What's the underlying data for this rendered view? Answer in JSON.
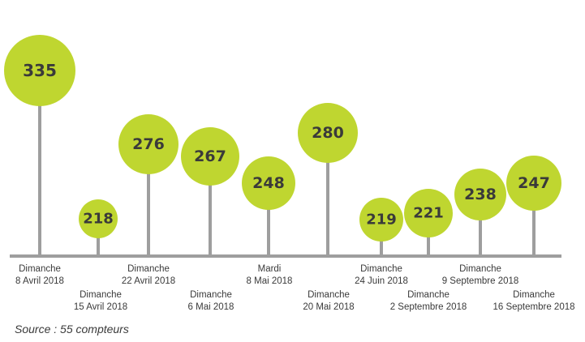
{
  "chart_data": {
    "type": "lollipop",
    "colors": {
      "bubble": "#bfd630",
      "stem": "#9e9e9e",
      "baseline": "#9e9e9e",
      "text": "#3a3a3a"
    },
    "points": [
      {
        "date_line1": "Dimanche",
        "date_line2": "8 Avril 2018",
        "value": 335
      },
      {
        "date_line1": "Dimanche",
        "date_line2": "15 Avril 2018",
        "value": 218
      },
      {
        "date_line1": "Dimanche",
        "date_line2": "22 Avril 2018",
        "value": 276
      },
      {
        "date_line1": "Dimanche",
        "date_line2": "6 Mai 2018",
        "value": 267
      },
      {
        "date_line1": "Mardi",
        "date_line2": "8 Mai 2018",
        "value": 248
      },
      {
        "date_line1": "Dimanche",
        "date_line2": "20 Mai 2018",
        "value": 280
      },
      {
        "date_line1": "Dimanche",
        "date_line2": "24 Juin 2018",
        "value": 219
      },
      {
        "date_line1": "Dimanche",
        "date_line2": "2 Septembre 2018",
        "value": 221
      },
      {
        "date_line1": "Dimanche",
        "date_line2": "9 Septembre 2018",
        "value": 238
      },
      {
        "date_line1": "Dimanche",
        "date_line2": "16 Septembre 2018",
        "value": 247
      }
    ]
  },
  "source": "Source : 55 compteurs"
}
